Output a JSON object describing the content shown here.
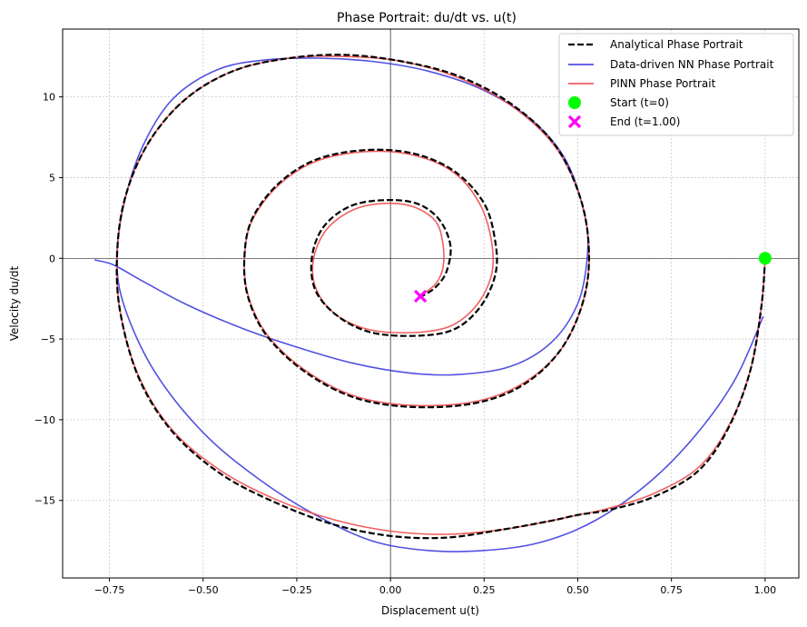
{
  "chart_data": {
    "type": "line",
    "title": "Phase Portrait: du/dt vs. u(t)",
    "xlabel": "Displacement u(t)",
    "ylabel": "Velocity du/dt",
    "xlim": [
      -0.875,
      1.09
    ],
    "ylim": [
      -19.8,
      14.2
    ],
    "xticks": [
      -0.75,
      -0.5,
      -0.25,
      0.0,
      0.25,
      0.5,
      0.75,
      1.0
    ],
    "xtick_labels": [
      "−0.75",
      "−0.50",
      "−0.25",
      "0.00",
      "0.25",
      "0.50",
      "0.75",
      "1.00"
    ],
    "yticks": [
      -15,
      -10,
      -5,
      0,
      5,
      10
    ],
    "ytick_labels": [
      "−15",
      "−10",
      "−5",
      "0",
      "5",
      "10"
    ],
    "grid": true,
    "legend_position": "top-right",
    "series": [
      {
        "name": "Analytical Phase Portrait",
        "color": "#000000",
        "style": "dashed",
        "points": [
          [
            1.0,
            0.0
          ],
          [
            0.99,
            -3.0
          ],
          [
            0.96,
            -7.0
          ],
          [
            0.9,
            -10.6
          ],
          [
            0.82,
            -13.2
          ],
          [
            0.7,
            -14.8
          ],
          [
            0.58,
            -15.6
          ],
          [
            0.5,
            -15.9
          ],
          [
            0.42,
            -16.3
          ],
          [
            0.3,
            -16.8
          ],
          [
            0.15,
            -17.3
          ],
          [
            0.0,
            -17.2
          ],
          [
            -0.15,
            -16.5
          ],
          [
            -0.3,
            -15.2
          ],
          [
            -0.45,
            -13.4
          ],
          [
            -0.58,
            -10.8
          ],
          [
            -0.67,
            -7.5
          ],
          [
            -0.72,
            -3.5
          ],
          [
            -0.73,
            0.0
          ],
          [
            -0.71,
            3.6
          ],
          [
            -0.65,
            7.0
          ],
          [
            -0.55,
            9.8
          ],
          [
            -0.42,
            11.6
          ],
          [
            -0.27,
            12.4
          ],
          [
            -0.12,
            12.6
          ],
          [
            0.03,
            12.2
          ],
          [
            0.18,
            11.3
          ],
          [
            0.32,
            9.6
          ],
          [
            0.44,
            7.0
          ],
          [
            0.51,
            3.5
          ],
          [
            0.53,
            0.0
          ],
          [
            0.51,
            -3.0
          ],
          [
            0.45,
            -5.8
          ],
          [
            0.35,
            -7.9
          ],
          [
            0.22,
            -9.0
          ],
          [
            0.05,
            -9.2
          ],
          [
            -0.1,
            -8.6
          ],
          [
            -0.23,
            -7.0
          ],
          [
            -0.33,
            -4.8
          ],
          [
            -0.38,
            -2.4
          ],
          [
            -0.39,
            0.0
          ],
          [
            -0.37,
            2.4
          ],
          [
            -0.3,
            4.6
          ],
          [
            -0.2,
            6.1
          ],
          [
            -0.07,
            6.7
          ],
          [
            0.06,
            6.5
          ],
          [
            0.17,
            5.4
          ],
          [
            0.25,
            3.4
          ],
          [
            0.28,
            1.0
          ],
          [
            0.28,
            -1.0
          ],
          [
            0.24,
            -3.0
          ],
          [
            0.17,
            -4.4
          ],
          [
            0.07,
            -4.8
          ],
          [
            -0.05,
            -4.6
          ],
          [
            -0.14,
            -3.6
          ],
          [
            -0.2,
            -2.0
          ],
          [
            -0.21,
            0.0
          ],
          [
            -0.18,
            1.9
          ],
          [
            -0.11,
            3.2
          ],
          [
            -0.02,
            3.6
          ],
          [
            0.07,
            3.4
          ],
          [
            0.13,
            2.4
          ],
          [
            0.16,
            0.8
          ],
          [
            0.15,
            -0.8
          ],
          [
            0.12,
            -1.8
          ],
          [
            0.08,
            -2.4
          ]
        ]
      },
      {
        "name": "Data-driven NN Phase Portrait",
        "color": "#3333dd",
        "style": "solid",
        "points": [
          [
            0.995,
            -3.6
          ],
          [
            0.92,
            -7.5
          ],
          [
            0.82,
            -10.8
          ],
          [
            0.7,
            -13.7
          ],
          [
            0.55,
            -16.2
          ],
          [
            0.4,
            -17.6
          ],
          [
            0.25,
            -18.1
          ],
          [
            0.1,
            -18.1
          ],
          [
            -0.05,
            -17.5
          ],
          [
            -0.2,
            -15.9
          ],
          [
            -0.35,
            -13.7
          ],
          [
            -0.5,
            -10.8
          ],
          [
            -0.63,
            -7.0
          ],
          [
            -0.71,
            -3.0
          ],
          [
            -0.73,
            0.0
          ],
          [
            -0.71,
            3.5
          ],
          [
            -0.66,
            7.0
          ],
          [
            -0.58,
            9.9
          ],
          [
            -0.46,
            11.7
          ],
          [
            -0.33,
            12.3
          ],
          [
            -0.2,
            12.4
          ],
          [
            -0.05,
            12.2
          ],
          [
            0.1,
            11.6
          ],
          [
            0.25,
            10.4
          ],
          [
            0.38,
            8.5
          ],
          [
            0.47,
            6.0
          ],
          [
            0.52,
            2.5
          ],
          [
            0.525,
            0.0
          ],
          [
            0.5,
            -2.8
          ],
          [
            0.43,
            -5.2
          ],
          [
            0.32,
            -6.7
          ],
          [
            0.18,
            -7.2
          ],
          [
            0.05,
            -7.1
          ],
          [
            -0.1,
            -6.5
          ],
          [
            -0.25,
            -5.5
          ],
          [
            -0.4,
            -4.3
          ],
          [
            -0.55,
            -2.8
          ],
          [
            -0.67,
            -1.3
          ],
          [
            -0.74,
            -0.4
          ],
          [
            -0.79,
            -0.1
          ]
        ]
      },
      {
        "name": "PINN Phase Portrait",
        "color": "#ee4444",
        "style": "solid",
        "points": [
          [
            1.0,
            0.0
          ],
          [
            0.99,
            -3.0
          ],
          [
            0.96,
            -7.0
          ],
          [
            0.9,
            -10.5
          ],
          [
            0.82,
            -13.0
          ],
          [
            0.7,
            -14.6
          ],
          [
            0.58,
            -15.5
          ],
          [
            0.5,
            -15.9
          ],
          [
            0.42,
            -16.3
          ],
          [
            0.3,
            -16.8
          ],
          [
            0.15,
            -17.1
          ],
          [
            0.0,
            -16.9
          ],
          [
            -0.15,
            -16.2
          ],
          [
            -0.3,
            -15.0
          ],
          [
            -0.45,
            -13.2
          ],
          [
            -0.58,
            -10.7
          ],
          [
            -0.67,
            -7.4
          ],
          [
            -0.72,
            -3.5
          ],
          [
            -0.73,
            0.0
          ],
          [
            -0.71,
            3.6
          ],
          [
            -0.65,
            7.0
          ],
          [
            -0.55,
            9.8
          ],
          [
            -0.42,
            11.6
          ],
          [
            -0.27,
            12.4
          ],
          [
            -0.12,
            12.5
          ],
          [
            0.03,
            12.2
          ],
          [
            0.18,
            11.2
          ],
          [
            0.32,
            9.5
          ],
          [
            0.44,
            6.9
          ],
          [
            0.51,
            3.5
          ],
          [
            0.53,
            0.0
          ],
          [
            0.51,
            -3.0
          ],
          [
            0.45,
            -5.8
          ],
          [
            0.35,
            -7.8
          ],
          [
            0.22,
            -8.9
          ],
          [
            0.05,
            -9.1
          ],
          [
            -0.1,
            -8.5
          ],
          [
            -0.23,
            -6.9
          ],
          [
            -0.33,
            -4.7
          ],
          [
            -0.38,
            -2.3
          ],
          [
            -0.39,
            0.0
          ],
          [
            -0.37,
            2.3
          ],
          [
            -0.3,
            4.5
          ],
          [
            -0.2,
            6.0
          ],
          [
            -0.07,
            6.6
          ],
          [
            0.06,
            6.4
          ],
          [
            0.17,
            5.3
          ],
          [
            0.24,
            3.3
          ],
          [
            0.27,
            1.0
          ],
          [
            0.27,
            -1.0
          ],
          [
            0.23,
            -2.9
          ],
          [
            0.16,
            -4.2
          ],
          [
            0.06,
            -4.6
          ],
          [
            -0.06,
            -4.4
          ],
          [
            -0.15,
            -3.4
          ],
          [
            -0.2,
            -1.8
          ],
          [
            -0.205,
            0.0
          ],
          [
            -0.17,
            1.8
          ],
          [
            -0.1,
            3.0
          ],
          [
            -0.02,
            3.4
          ],
          [
            0.06,
            3.2
          ],
          [
            0.12,
            2.3
          ],
          [
            0.14,
            0.9
          ],
          [
            0.14,
            -0.6
          ],
          [
            0.12,
            -1.6
          ],
          [
            0.08,
            -2.3
          ]
        ]
      }
    ],
    "markers": [
      {
        "name": "Start (t=0)",
        "x": 1.0,
        "y": 0.0,
        "color": "#00ff00",
        "shape": "circle"
      },
      {
        "name": "End (t=1.00)",
        "x": 0.08,
        "y": -2.35,
        "color": "#ff00ff",
        "shape": "x"
      }
    ]
  }
}
